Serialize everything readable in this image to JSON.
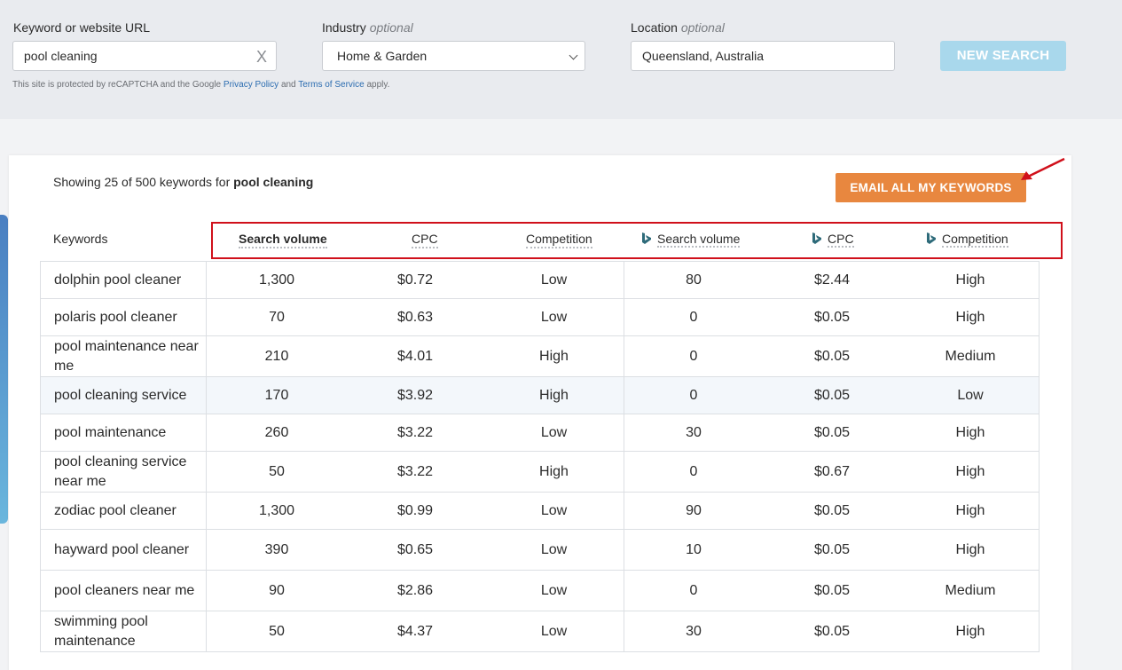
{
  "search": {
    "keyword_label": "Keyword or website URL",
    "keyword_value": "pool cleaning",
    "clear_glyph": "X",
    "industry_label": "Industry",
    "industry_optional": "optional",
    "industry_value": "Home & Garden",
    "location_label": "Location",
    "location_optional": "optional",
    "location_value": "Queensland, Australia",
    "new_search_label": "NEW SEARCH",
    "recaptcha_prefix": "This site is protected by reCAPTCHA and the Google",
    "privacy_link": "Privacy Policy",
    "and_text": "and",
    "terms_link": "Terms of Service",
    "apply_text": "apply."
  },
  "results": {
    "showing_prefix": "Showing 25 of 500 keywords for",
    "query": "pool cleaning",
    "email_button": "EMAIL ALL MY KEYWORDS"
  },
  "columns": {
    "keywords": "Keywords",
    "google_search_volume": "Search volume",
    "google_cpc": "CPC",
    "google_competition": "Competition",
    "bing_search_volume": "Search volume",
    "bing_cpc": "CPC",
    "bing_competition": "Competition"
  },
  "icons": {
    "bing": "bing-logo-icon",
    "clear": "close-icon",
    "dropdown": "chevron-down-icon"
  },
  "colors": {
    "accent_orange": "#e8873f",
    "new_search_disabled": "#a9d8ec",
    "highlight_red": "#d0101b",
    "bing_teal": "#2e6b7a"
  },
  "rows": [
    {
      "keyword": "dolphin pool cleaner",
      "g_vol": "1,300",
      "g_cpc": "$0.72",
      "g_comp": "Low",
      "b_vol": "80",
      "b_cpc": "$2.44",
      "b_comp": "High"
    },
    {
      "keyword": "polaris pool cleaner",
      "g_vol": "70",
      "g_cpc": "$0.63",
      "g_comp": "Low",
      "b_vol": "0",
      "b_cpc": "$0.05",
      "b_comp": "High"
    },
    {
      "keyword": "pool maintenance near me",
      "g_vol": "210",
      "g_cpc": "$4.01",
      "g_comp": "High",
      "b_vol": "0",
      "b_cpc": "$0.05",
      "b_comp": "Medium"
    },
    {
      "keyword": "pool cleaning service",
      "g_vol": "170",
      "g_cpc": "$3.92",
      "g_comp": "High",
      "b_vol": "0",
      "b_cpc": "$0.05",
      "b_comp": "Low"
    },
    {
      "keyword": "pool maintenance",
      "g_vol": "260",
      "g_cpc": "$3.22",
      "g_comp": "Low",
      "b_vol": "30",
      "b_cpc": "$0.05",
      "b_comp": "High"
    },
    {
      "keyword": "pool cleaning service near me",
      "g_vol": "50",
      "g_cpc": "$3.22",
      "g_comp": "High",
      "b_vol": "0",
      "b_cpc": "$0.67",
      "b_comp": "High"
    },
    {
      "keyword": "zodiac pool cleaner",
      "g_vol": "1,300",
      "g_cpc": "$0.99",
      "g_comp": "Low",
      "b_vol": "90",
      "b_cpc": "$0.05",
      "b_comp": "High"
    },
    {
      "keyword": "hayward pool cleaner",
      "g_vol": "390",
      "g_cpc": "$0.65",
      "g_comp": "Low",
      "b_vol": "10",
      "b_cpc": "$0.05",
      "b_comp": "High"
    },
    {
      "keyword": "pool cleaners near me",
      "g_vol": "90",
      "g_cpc": "$2.86",
      "g_comp": "Low",
      "b_vol": "0",
      "b_cpc": "$0.05",
      "b_comp": "Medium"
    },
    {
      "keyword": "swimming pool maintenance",
      "g_vol": "50",
      "g_cpc": "$4.37",
      "g_comp": "Low",
      "b_vol": "30",
      "b_cpc": "$0.05",
      "b_comp": "High"
    }
  ]
}
